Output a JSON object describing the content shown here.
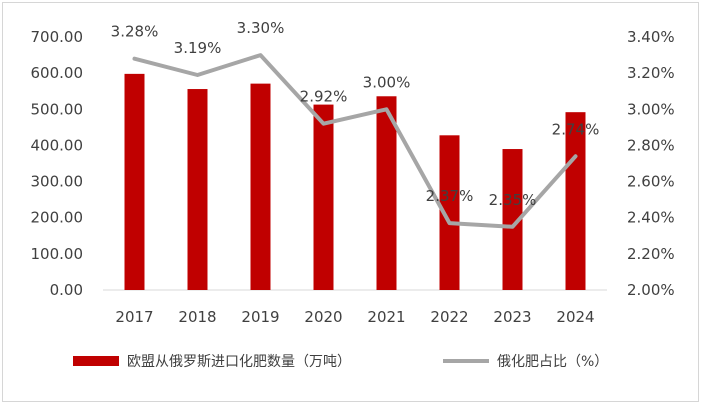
{
  "chart_data": {
    "type": "bar",
    "categories": [
      "2017",
      "2018",
      "2019",
      "2020",
      "2021",
      "2022",
      "2023",
      "2024"
    ],
    "series": [
      {
        "name": "欧盟从俄罗斯进口化肥数量（万吨）",
        "type": "bar",
        "axis": "left",
        "color": "#c00000",
        "values": [
          598,
          556,
          571,
          513,
          536,
          428,
          390,
          492
        ]
      },
      {
        "name": "俄化肥占比（%）",
        "type": "line",
        "axis": "right",
        "color": "#a6a6a6",
        "values": [
          3.28,
          3.19,
          3.3,
          2.92,
          3.0,
          2.37,
          2.35,
          2.74
        ],
        "labels": [
          "3.28%",
          "3.19%",
          "3.30%",
          "2.92%",
          "3.00%",
          "2.37%",
          "2.35%",
          "2.74%"
        ]
      }
    ],
    "y_left": {
      "min": 0,
      "max": 700,
      "ticks": [
        "0.00",
        "100.00",
        "200.00",
        "300.00",
        "400.00",
        "500.00",
        "600.00",
        "700.00"
      ]
    },
    "y_right": {
      "min": 2.0,
      "max": 3.4,
      "ticks": [
        "2.00%",
        "2.20%",
        "2.40%",
        "2.60%",
        "2.80%",
        "3.00%",
        "3.20%",
        "3.40%"
      ]
    },
    "grid": false,
    "legend": "bottom-center"
  }
}
